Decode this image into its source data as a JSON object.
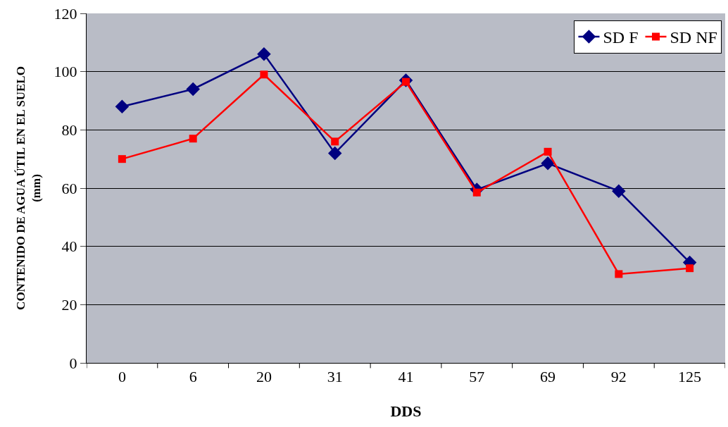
{
  "chart_data": {
    "type": "line",
    "xlabel": "DDS",
    "ylabel": "CONTENIDO DE AGUA ÚTIL EN EL SUELO\n(mm)",
    "categories": [
      "0",
      "6",
      "20",
      "31",
      "41",
      "57",
      "69",
      "92",
      "125"
    ],
    "series": [
      {
        "name": "SD F",
        "color": "#000080",
        "marker": "diamond",
        "values": [
          88,
          94,
          106,
          72,
          97,
          59.5,
          68.5,
          59,
          34.5
        ]
      },
      {
        "name": "SD NF",
        "color": "#ff0000",
        "marker": "square",
        "values": [
          70,
          77,
          99,
          76,
          96.5,
          58.5,
          72.5,
          30.5,
          32.5
        ]
      }
    ],
    "ylim": [
      0,
      120
    ],
    "yticks": [
      0,
      20,
      40,
      60,
      80,
      100,
      120
    ],
    "grid": "y",
    "legend": "top right",
    "line_style": "solid"
  }
}
